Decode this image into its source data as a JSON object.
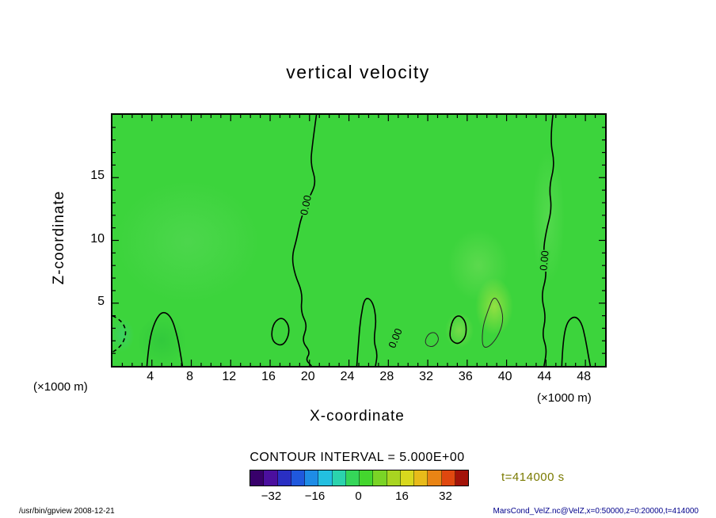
{
  "chart_data": {
    "type": "contour",
    "title": "vertical velocity",
    "xlabel": "X-coordinate",
    "ylabel": "Z-coordinate",
    "x_unit": "(×1000 m)",
    "z_unit": "(×1000 m)",
    "xlim": [
      0,
      50
    ],
    "zlim": [
      0,
      20
    ],
    "x_ticks": [
      4,
      8,
      12,
      16,
      20,
      24,
      28,
      32,
      36,
      40,
      44,
      48
    ],
    "z_ticks": [
      5,
      10,
      15
    ],
    "grid": false,
    "field_color": "#3cd43c",
    "contour_interval_label": "CONTOUR INTERVAL = 5.000E+00",
    "time_label": "t=414000 s",
    "time_label_color": "#7a7a00",
    "contour_labels": [
      {
        "text": "0.00",
        "x": 19.6,
        "z": 12.8,
        "rot": -78
      },
      {
        "text": "0.00",
        "x": 43.8,
        "z": 8.4,
        "rot": -85
      },
      {
        "text": "0.00",
        "x": 28.7,
        "z": 2.2,
        "rot": -68
      }
    ],
    "contours": [
      {
        "name": "zero-line-left",
        "closed": false,
        "dashed": false,
        "thin": false,
        "points": [
          [
            20.7,
            20
          ],
          [
            20.3,
            17.7
          ],
          [
            20.1,
            16.1
          ],
          [
            20.7,
            14.6
          ],
          [
            19.9,
            13.3
          ],
          [
            19.1,
            11.7
          ],
          [
            18.7,
            10.1
          ],
          [
            18.2,
            8.7
          ],
          [
            18.5,
            7.3
          ],
          [
            19.3,
            5.8
          ],
          [
            19.1,
            4.3
          ],
          [
            19.8,
            3.2
          ],
          [
            19.2,
            2.0
          ],
          [
            20.1,
            1.1
          ],
          [
            19.6,
            0.5
          ],
          [
            20.2,
            0
          ]
        ]
      },
      {
        "name": "zero-line-right",
        "closed": false,
        "dashed": false,
        "thin": false,
        "points": [
          [
            44.7,
            20
          ],
          [
            44.4,
            18.0
          ],
          [
            44.9,
            16.1
          ],
          [
            44.3,
            14.2
          ],
          [
            44.6,
            12.5
          ],
          [
            44.0,
            10.7
          ],
          [
            43.7,
            9.0
          ],
          [
            44.1,
            7.3
          ],
          [
            43.5,
            5.6
          ],
          [
            44.0,
            3.9
          ],
          [
            43.6,
            2.5
          ],
          [
            44.1,
            1.3
          ],
          [
            43.8,
            0
          ]
        ]
      },
      {
        "name": "blob-left-bottom",
        "closed": false,
        "dashed": false,
        "thin": false,
        "points": [
          [
            3.5,
            0
          ],
          [
            3.7,
            1.9
          ],
          [
            4.3,
            3.6
          ],
          [
            5.1,
            4.4
          ],
          [
            6.0,
            3.9
          ],
          [
            6.6,
            2.3
          ],
          [
            6.9,
            1.0
          ],
          [
            7.1,
            0
          ]
        ]
      },
      {
        "name": "blob-oval",
        "closed": true,
        "dashed": false,
        "thin": false,
        "points": [
          [
            16.1,
            2.5
          ],
          [
            16.4,
            3.5
          ],
          [
            17.2,
            3.9
          ],
          [
            17.9,
            3.3
          ],
          [
            17.9,
            2.4
          ],
          [
            17.3,
            1.6
          ],
          [
            16.4,
            1.8
          ]
        ]
      },
      {
        "name": "blob-tall",
        "closed": false,
        "dashed": false,
        "thin": false,
        "points": [
          [
            24.8,
            0
          ],
          [
            25.0,
            2.2
          ],
          [
            25.2,
            3.9
          ],
          [
            25.6,
            5.5
          ],
          [
            26.4,
            5.2
          ],
          [
            26.8,
            3.7
          ],
          [
            26.5,
            2.0
          ],
          [
            26.9,
            1.0
          ],
          [
            26.7,
            0
          ]
        ]
      },
      {
        "name": "blob-small-thin",
        "closed": true,
        "dashed": false,
        "thin": true,
        "points": [
          [
            31.7,
            2.0
          ],
          [
            32.1,
            2.6
          ],
          [
            32.8,
            2.7
          ],
          [
            33.2,
            2.1
          ],
          [
            32.6,
            1.5
          ],
          [
            31.9,
            1.6
          ]
        ]
      },
      {
        "name": "blob-mid",
        "closed": true,
        "dashed": false,
        "thin": false,
        "points": [
          [
            34.2,
            2.5
          ],
          [
            34.5,
            3.7
          ],
          [
            35.2,
            4.1
          ],
          [
            35.9,
            3.5
          ],
          [
            35.9,
            2.3
          ],
          [
            35.1,
            1.7
          ],
          [
            34.4,
            2.0
          ]
        ]
      },
      {
        "name": "blob-irregular-thin",
        "closed": true,
        "dashed": false,
        "thin": true,
        "points": [
          [
            37.5,
            1.8
          ],
          [
            37.6,
            3.2
          ],
          [
            38.1,
            4.4
          ],
          [
            38.7,
            5.6
          ],
          [
            39.3,
            5.0
          ],
          [
            39.7,
            3.8
          ],
          [
            39.3,
            2.6
          ],
          [
            38.5,
            1.7
          ],
          [
            37.8,
            1.4
          ]
        ]
      },
      {
        "name": "blob-right-bottom",
        "closed": false,
        "dashed": false,
        "thin": false,
        "points": [
          [
            45.6,
            0
          ],
          [
            45.7,
            1.8
          ],
          [
            46.1,
            3.5
          ],
          [
            46.9,
            4.0
          ],
          [
            47.6,
            3.5
          ],
          [
            48.0,
            2.2
          ],
          [
            48.3,
            0.8
          ],
          [
            48.5,
            0
          ]
        ]
      },
      {
        "name": "dashed-negative",
        "closed": false,
        "dashed": true,
        "thin": false,
        "points": [
          [
            0,
            4.0
          ],
          [
            0.8,
            3.7
          ],
          [
            1.4,
            2.9
          ],
          [
            1.2,
            2.0
          ],
          [
            0.6,
            1.4
          ],
          [
            0,
            1.1
          ]
        ]
      }
    ],
    "colorbar": {
      "min": -40,
      "max": 40,
      "ticks": [
        -32,
        -16,
        0,
        16,
        32
      ],
      "tick_labels": [
        "−32",
        "−16",
        "0",
        "16",
        "32"
      ],
      "segment_colors": [
        "#38006b",
        "#4b0f9e",
        "#2a2fc3",
        "#1f58dd",
        "#1e8ce6",
        "#23bfe0",
        "#2bd3ad",
        "#35d659",
        "#44d62e",
        "#7ad426",
        "#a8d521",
        "#d8d81e",
        "#e8bb1a",
        "#e98415",
        "#e0480f",
        "#a31309"
      ]
    }
  },
  "footer": {
    "left": "/usr/bin/gpview  2008-12-21",
    "right": "MarsCond_VelZ.nc@VelZ,x=0:50000,z=0:20000,t=414000",
    "right_color": "#00008b"
  }
}
